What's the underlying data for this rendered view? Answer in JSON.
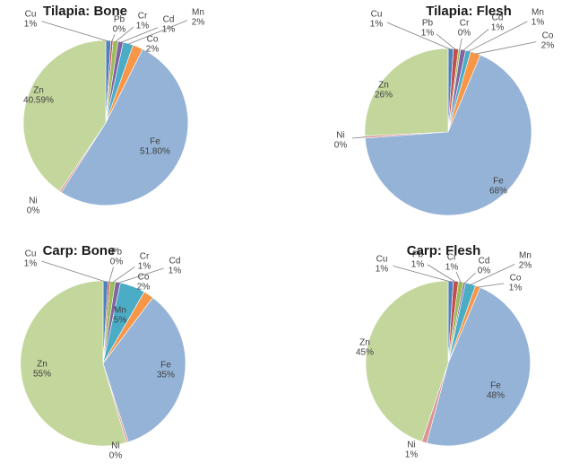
{
  "figure": {
    "background": "#ffffff",
    "description": "Four pie charts of heavy metal percentage composition in fish tissues"
  },
  "palette": {
    "Cu": "#4F81BD",
    "Pb": "#C0504D",
    "Cr": "#9BBB59",
    "Cd": "#8064A2",
    "Mn": "#4BACC6",
    "Co": "#F79646",
    "Fe": "#95B3D7",
    "Ni": "#D99694",
    "Zn": "#C3D69B"
  },
  "label_color": "#404040",
  "leader_color": "#7F7F7F",
  "chart_data": [
    {
      "type": "pie",
      "title": "Tilapia: Bone",
      "legend": "none",
      "start": "12 o'clock",
      "direction": "clockwise",
      "slices": [
        {
          "name": "Cu",
          "value": 1,
          "label": "1%"
        },
        {
          "name": "Pb",
          "value": 0,
          "label": "0%"
        },
        {
          "name": "Cr",
          "value": 1,
          "label": "1%"
        },
        {
          "name": "Cd",
          "value": 1,
          "label": "1%"
        },
        {
          "name": "Mn",
          "value": 2,
          "label": "2%"
        },
        {
          "name": "Co",
          "value": 2,
          "label": "2%"
        },
        {
          "name": "Fe",
          "value": 51.8,
          "label": "51.80%"
        },
        {
          "name": "Ni",
          "value": 0,
          "label": "0%"
        },
        {
          "name": "Zn",
          "value": 40.59,
          "label": "40.59%"
        }
      ]
    },
    {
      "type": "pie",
      "title": "Tilapia: Flesh",
      "legend": "none",
      "start": "12 o'clock",
      "direction": "clockwise",
      "slices": [
        {
          "name": "Cu",
          "value": 1,
          "label": "1%"
        },
        {
          "name": "Pb",
          "value": 1,
          "label": "1%"
        },
        {
          "name": "Cr",
          "value": 0,
          "label": "0%"
        },
        {
          "name": "Cd",
          "value": 1,
          "label": "1%"
        },
        {
          "name": "Mn",
          "value": 1,
          "label": "1%"
        },
        {
          "name": "Co",
          "value": 2,
          "label": "2%"
        },
        {
          "name": "Fe",
          "value": 68,
          "label": "68%"
        },
        {
          "name": "Ni",
          "value": 0,
          "label": "0%"
        },
        {
          "name": "Zn",
          "value": 26,
          "label": "26%"
        }
      ]
    },
    {
      "type": "pie",
      "title": "Carp: Bone",
      "legend": "none",
      "start": "12 o'clock",
      "direction": "clockwise",
      "slices": [
        {
          "name": "Cu",
          "value": 1,
          "label": "1%"
        },
        {
          "name": "Pb",
          "value": 0,
          "label": "0%"
        },
        {
          "name": "Cr",
          "value": 1,
          "label": "1%"
        },
        {
          "name": "Cd",
          "value": 1,
          "label": "1%"
        },
        {
          "name": "Mn",
          "value": 5,
          "label": "5%"
        },
        {
          "name": "Co",
          "value": 2,
          "label": "2%"
        },
        {
          "name": "Fe",
          "value": 35,
          "label": "35%"
        },
        {
          "name": "Ni",
          "value": 0,
          "label": "0%"
        },
        {
          "name": "Zn",
          "value": 55,
          "label": "55%"
        }
      ]
    },
    {
      "type": "pie",
      "title": "Carp: Flesh",
      "legend": "none",
      "start": "12 o'clock",
      "direction": "clockwise",
      "slices": [
        {
          "name": "Cu",
          "value": 1,
          "label": "1%"
        },
        {
          "name": "Pb",
          "value": 1,
          "label": "1%"
        },
        {
          "name": "Cr",
          "value": 1,
          "label": "1%"
        },
        {
          "name": "Cd",
          "value": 0,
          "label": "0%"
        },
        {
          "name": "Mn",
          "value": 2,
          "label": "2%"
        },
        {
          "name": "Co",
          "value": 1,
          "label": "1%"
        },
        {
          "name": "Fe",
          "value": 48,
          "label": "48%"
        },
        {
          "name": "Ni",
          "value": 1,
          "label": "1%"
        },
        {
          "name": "Zn",
          "value": 45,
          "label": "45%"
        }
      ]
    }
  ]
}
